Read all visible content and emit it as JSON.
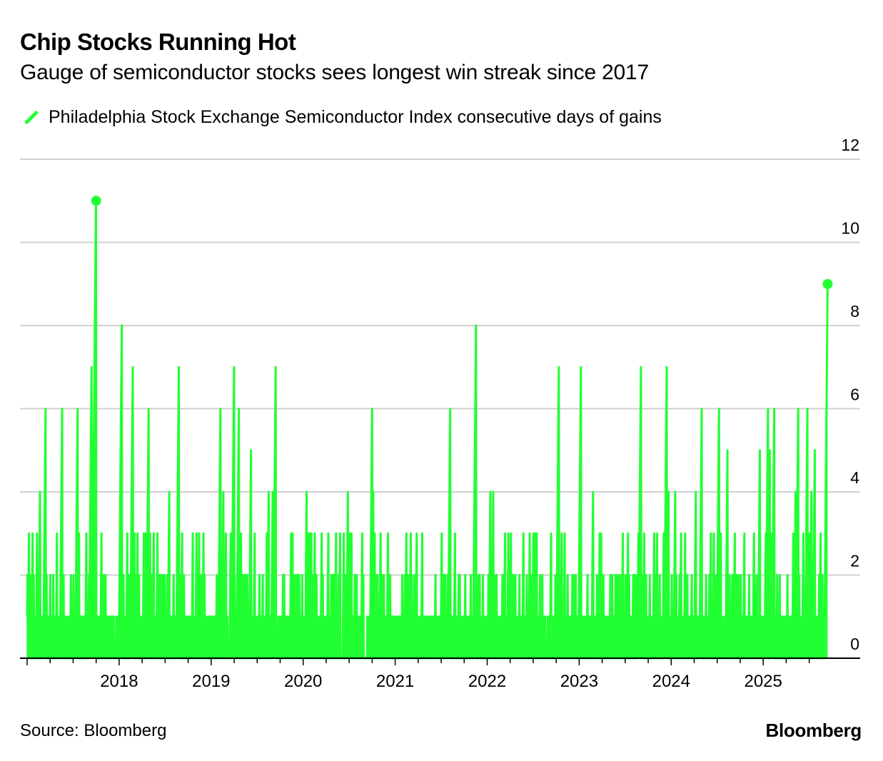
{
  "header": {
    "title": "Chip Stocks Running Hot",
    "subtitle": "Gauge of semiconductor stocks sees longest win streak since 2017"
  },
  "legend": {
    "label": "Philadelphia Stock Exchange Semiconductor Index consecutive days of gains"
  },
  "footer": {
    "source": "Source: Bloomberg",
    "brand": "Bloomberg"
  },
  "colors": {
    "series": "#21ff33",
    "grid": "#d0d0d0",
    "axis": "#000000",
    "text": "#000000"
  },
  "chart_data": {
    "type": "area",
    "title": "Chip Stocks Running Hot",
    "subtitle": "Gauge of semiconductor stocks sees longest win streak since 2017",
    "series_name": "Philadelphia Stock Exchange Semiconductor Index consecutive days of gains",
    "xlabel": "",
    "ylabel": "",
    "x_range": [
      2017.0,
      2025.72
    ],
    "ylim": [
      0,
      12
    ],
    "y_ticks": [
      0,
      2,
      4,
      6,
      8,
      10,
      12
    ],
    "y_axis_side": "right",
    "x_ticks": [
      2018,
      2019,
      2020,
      2021,
      2022,
      2023,
      2024,
      2025
    ],
    "x_tick_labels": [
      "2018",
      "2019",
      "2020",
      "2021",
      "2022",
      "2023",
      "2024",
      "2025"
    ],
    "grid": true,
    "peaks": [
      {
        "x": 2017.75,
        "y": 11
      },
      {
        "x": 2017.7,
        "y": 7
      },
      {
        "x": 2018.03,
        "y": 8
      },
      {
        "x": 2018.15,
        "y": 7
      },
      {
        "x": 2018.65,
        "y": 7
      },
      {
        "x": 2019.25,
        "y": 7
      },
      {
        "x": 2019.7,
        "y": 7
      },
      {
        "x": 2017.2,
        "y": 6
      },
      {
        "x": 2017.38,
        "y": 6
      },
      {
        "x": 2017.55,
        "y": 6
      },
      {
        "x": 2018.32,
        "y": 6
      },
      {
        "x": 2019.1,
        "y": 6
      },
      {
        "x": 2019.3,
        "y": 6
      },
      {
        "x": 2020.75,
        "y": 6
      },
      {
        "x": 2021.6,
        "y": 6
      },
      {
        "x": 2021.88,
        "y": 8
      },
      {
        "x": 2022.78,
        "y": 7
      },
      {
        "x": 2023.02,
        "y": 7
      },
      {
        "x": 2023.67,
        "y": 7
      },
      {
        "x": 2023.95,
        "y": 7
      },
      {
        "x": 2024.33,
        "y": 6
      },
      {
        "x": 2024.52,
        "y": 6
      },
      {
        "x": 2025.05,
        "y": 6
      },
      {
        "x": 2025.12,
        "y": 6
      },
      {
        "x": 2025.38,
        "y": 6
      },
      {
        "x": 2025.48,
        "y": 6
      },
      {
        "x": 2025.7,
        "y": 9
      }
    ],
    "annotations": [
      {
        "x": 2017.75,
        "y": 11,
        "marker": "dot"
      },
      {
        "x": 2025.7,
        "y": 9,
        "marker": "dot"
      }
    ]
  }
}
